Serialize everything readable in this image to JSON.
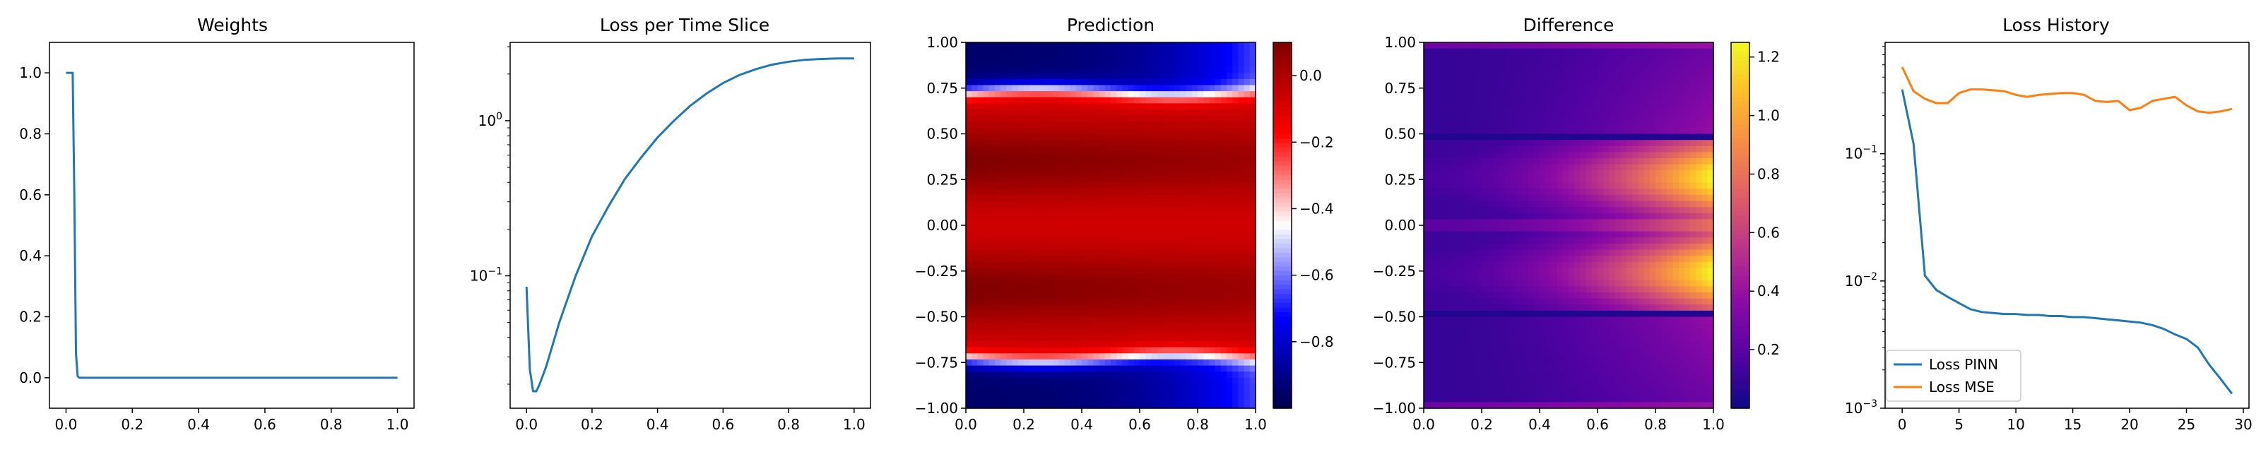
{
  "chart_data": [
    {
      "type": "line",
      "title": "Weights",
      "xlim": [
        -0.05,
        1.05
      ],
      "ylim": [
        -0.1,
        1.1
      ],
      "xticks": [
        "0.0",
        "0.2",
        "0.4",
        "0.6",
        "0.8",
        "1.0"
      ],
      "yticks": [
        "0.0",
        "0.2",
        "0.4",
        "0.6",
        "0.8",
        "1.0"
      ],
      "series": [
        {
          "color": "#1f77b4",
          "x": [
            0.0,
            0.01,
            0.02,
            0.025,
            0.03,
            0.035,
            0.04,
            0.1,
            0.5,
            1.0
          ],
          "y": [
            1.0,
            1.0,
            1.0,
            0.6,
            0.08,
            0.005,
            0.0,
            0.0,
            0.0,
            0.0
          ]
        }
      ]
    },
    {
      "type": "line",
      "title": "Loss per Time Slice",
      "yscale": "log",
      "xlim": [
        -0.05,
        1.05
      ],
      "ylim": [
        0.014,
        3.2
      ],
      "xticks": [
        "0.0",
        "0.2",
        "0.4",
        "0.6",
        "0.8",
        "1.0"
      ],
      "yticks": [
        {
          "value": 0.1,
          "base": "10",
          "exp": "−1"
        },
        {
          "value": 1,
          "base": "10",
          "exp": "0"
        }
      ],
      "series": [
        {
          "color": "#1f77b4",
          "x": [
            0.0,
            0.01,
            0.02,
            0.03,
            0.04,
            0.06,
            0.08,
            0.1,
            0.15,
            0.2,
            0.25,
            0.3,
            0.35,
            0.4,
            0.45,
            0.5,
            0.55,
            0.6,
            0.65,
            0.7,
            0.75,
            0.8,
            0.85,
            0.9,
            0.95,
            1.0
          ],
          "y": [
            0.085,
            0.025,
            0.018,
            0.018,
            0.02,
            0.026,
            0.036,
            0.05,
            0.1,
            0.18,
            0.28,
            0.42,
            0.58,
            0.78,
            1.0,
            1.25,
            1.5,
            1.75,
            1.97,
            2.15,
            2.3,
            2.4,
            2.47,
            2.5,
            2.52,
            2.52
          ]
        }
      ]
    },
    {
      "type": "heatmap",
      "title": "Prediction",
      "colormap": "seismic",
      "xlim": [
        0.0,
        1.0
      ],
      "ylim": [
        -1.0,
        1.0
      ],
      "clim": [
        -1.0,
        0.1
      ],
      "xticks": [
        "0.0",
        "0.2",
        "0.4",
        "0.6",
        "0.8",
        "1.0"
      ],
      "yticks": [
        "−1.00",
        "−0.75",
        "−0.50",
        "−0.25",
        "0.00",
        "0.25",
        "0.50",
        "0.75",
        "1.00"
      ],
      "cbar_ticks": [
        "0.0",
        "−0.2",
        "−0.4",
        "−0.6",
        "−0.8"
      ],
      "cbar_values": [
        0.0,
        -0.2,
        -0.4,
        -0.6,
        -0.8
      ]
    },
    {
      "type": "heatmap",
      "title": "Difference",
      "colormap": "plasma",
      "xlim": [
        0.0,
        1.0
      ],
      "ylim": [
        -1.0,
        1.0
      ],
      "clim": [
        0.0,
        1.25
      ],
      "xticks": [
        "0.0",
        "0.2",
        "0.4",
        "0.6",
        "0.8",
        "1.0"
      ],
      "yticks": [
        "−1.00",
        "−0.75",
        "−0.50",
        "−0.25",
        "0.00",
        "0.25",
        "0.50",
        "0.75",
        "1.00"
      ],
      "cbar_ticks": [
        "1.2",
        "1.0",
        "0.8",
        "0.6",
        "0.4",
        "0.2"
      ],
      "cbar_values": [
        1.2,
        1.0,
        0.8,
        0.6,
        0.4,
        0.2
      ]
    },
    {
      "type": "line",
      "title": "Loss History",
      "yscale": "log",
      "xlim": [
        -1.5,
        30.5
      ],
      "ylim": [
        0.001,
        0.75
      ],
      "xticks": [
        "0",
        "5",
        "10",
        "15",
        "20",
        "25",
        "30"
      ],
      "yticks": [
        {
          "value": 0.001,
          "base": "10",
          "exp": "−3"
        },
        {
          "value": 0.01,
          "base": "10",
          "exp": "−2"
        },
        {
          "value": 0.1,
          "base": "10",
          "exp": "−1"
        }
      ],
      "legend": "lower-left",
      "series": [
        {
          "name": "Loss PINN",
          "color": "#1f77b4",
          "x": [
            0,
            1,
            2,
            3,
            4,
            5,
            6,
            7,
            8,
            9,
            10,
            11,
            12,
            13,
            14,
            15,
            16,
            17,
            18,
            19,
            20,
            21,
            22,
            23,
            24,
            25,
            26,
            27,
            28,
            29
          ],
          "y": [
            0.32,
            0.12,
            0.011,
            0.0085,
            0.0075,
            0.0067,
            0.006,
            0.0057,
            0.0056,
            0.0055,
            0.0055,
            0.0054,
            0.0054,
            0.0053,
            0.0053,
            0.0052,
            0.0052,
            0.0051,
            0.005,
            0.0049,
            0.0048,
            0.0047,
            0.0045,
            0.0042,
            0.0038,
            0.0035,
            0.003,
            0.0022,
            0.0017,
            0.0013
          ]
        },
        {
          "name": "Loss MSE",
          "color": "#ff7f0e",
          "x": [
            0,
            1,
            2,
            3,
            4,
            5,
            6,
            7,
            8,
            9,
            10,
            11,
            12,
            13,
            14,
            15,
            16,
            17,
            18,
            19,
            20,
            21,
            22,
            23,
            24,
            25,
            26,
            27,
            28,
            29
          ],
          "y": [
            0.48,
            0.31,
            0.27,
            0.25,
            0.25,
            0.3,
            0.32,
            0.32,
            0.315,
            0.31,
            0.29,
            0.28,
            0.29,
            0.295,
            0.3,
            0.3,
            0.29,
            0.26,
            0.255,
            0.26,
            0.22,
            0.23,
            0.26,
            0.27,
            0.28,
            0.24,
            0.215,
            0.21,
            0.215,
            0.225
          ]
        }
      ]
    }
  ]
}
